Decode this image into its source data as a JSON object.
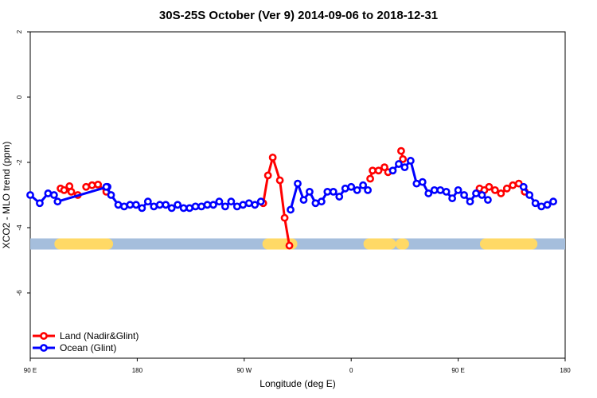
{
  "chart_data": {
    "type": "line",
    "title": "30S-25S October (Ver 9)   2014-09-06 to 2018-12-31",
    "xlabel": "Longitude (deg E)",
    "ylabel": "XCO2 - MLO trend (ppm)",
    "xlim": [
      90,
      540
    ],
    "ylim": [
      -8,
      2
    ],
    "x_ticks": [
      {
        "value": 90,
        "label": "90 E"
      },
      {
        "value": 180,
        "label": "180"
      },
      {
        "value": 270,
        "label": "90 W"
      },
      {
        "value": 360,
        "label": "0"
      },
      {
        "value": 450,
        "label": "90 E"
      },
      {
        "value": 540,
        "label": "180"
      }
    ],
    "y_ticks": [
      {
        "value": 2,
        "label": "2"
      },
      {
        "value": 0,
        "label": "0"
      },
      {
        "value": -2,
        "label": "-2"
      },
      {
        "value": -4,
        "label": "-4"
      },
      {
        "value": -6,
        "label": "-6"
      }
    ],
    "grid": false,
    "legend_position": "bottom-left",
    "series": [
      {
        "name": "Land (Nadir&Glint)",
        "color": "#ff0000",
        "segments": [
          [
            [
              115.5,
              -2.8
            ],
            [
              118.5,
              -2.85
            ],
            [
              124.5,
              -2.9
            ],
            [
              130,
              -3.0
            ]
          ],
          [
            [
              123,
              -2.73
            ]
          ],
          [
            [
              137,
              -2.75
            ],
            [
              142,
              -2.7
            ],
            [
              147,
              -2.68
            ],
            [
              154,
              -2.9
            ]
          ],
          [
            [
              286,
              -3.25
            ],
            [
              290,
              -2.4
            ],
            [
              294,
              -1.85
            ],
            [
              300,
              -2.55
            ],
            [
              304,
              -3.7
            ],
            [
              308,
              -4.55
            ]
          ],
          [
            [
              376,
              -2.5
            ],
            [
              378,
              -2.25
            ],
            [
              383,
              -2.25
            ],
            [
              388,
              -2.15
            ],
            [
              391,
              -2.3
            ]
          ],
          [
            [
              402,
              -1.65
            ],
            [
              403.5,
              -1.9
            ]
          ],
          [
            [
              468,
              -2.8
            ],
            [
              472,
              -2.85
            ],
            [
              476,
              -2.75
            ],
            [
              481,
              -2.85
            ],
            [
              486,
              -2.95
            ],
            [
              491,
              -2.8
            ],
            [
              496,
              -2.7
            ],
            [
              501,
              -2.65
            ],
            [
              506,
              -2.9
            ]
          ]
        ]
      },
      {
        "name": "Ocean (Glint)",
        "color": "#0000ff",
        "segments": [
          [
            [
              90,
              -3.0
            ],
            [
              98,
              -3.25
            ],
            [
              105,
              -2.95
            ],
            [
              110,
              -3.0
            ]
          ],
          [
            [
              113,
              -3.2
            ],
            [
              155,
              -2.75
            ]
          ],
          [
            [
              154,
              -2.75
            ],
            [
              158,
              -3.0
            ],
            [
              164,
              -3.3
            ],
            [
              169,
              -3.35
            ],
            [
              174,
              -3.3
            ],
            [
              179,
              -3.3
            ],
            [
              184,
              -3.4
            ],
            [
              189,
              -3.2
            ],
            [
              194,
              -3.35
            ],
            [
              199,
              -3.3
            ],
            [
              204,
              -3.3
            ],
            [
              209,
              -3.4
            ],
            [
              214,
              -3.3
            ],
            [
              219,
              -3.4
            ],
            [
              224,
              -3.4
            ],
            [
              229,
              -3.35
            ],
            [
              234,
              -3.35
            ],
            [
              239,
              -3.3
            ],
            [
              244,
              -3.3
            ],
            [
              249,
              -3.2
            ],
            [
              254,
              -3.35
            ],
            [
              259,
              -3.2
            ],
            [
              264,
              -3.35
            ],
            [
              269,
              -3.3
            ],
            [
              274,
              -3.25
            ],
            [
              279,
              -3.3
            ],
            [
              284,
              -3.2
            ]
          ],
          [
            [
              309,
              -3.45
            ],
            [
              315,
              -2.65
            ],
            [
              320,
              -3.15
            ],
            [
              325,
              -2.9
            ],
            [
              330,
              -3.25
            ],
            [
              335,
              -3.2
            ],
            [
              340,
              -2.9
            ],
            [
              345,
              -2.9
            ],
            [
              350,
              -3.05
            ],
            [
              355,
              -2.8
            ],
            [
              360,
              -2.75
            ],
            [
              365,
              -2.85
            ],
            [
              370,
              -2.7
            ],
            [
              374,
              -2.85
            ]
          ],
          [
            [
              395,
              -2.25
            ],
            [
              400,
              -2.05
            ],
            [
              405,
              -2.15
            ],
            [
              410,
              -1.95
            ],
            [
              415,
              -2.65
            ],
            [
              420,
              -2.6
            ],
            [
              425,
              -2.95
            ],
            [
              430,
              -2.85
            ],
            [
              435,
              -2.85
            ],
            [
              440,
              -2.9
            ],
            [
              445,
              -3.1
            ],
            [
              450,
              -2.85
            ],
            [
              455,
              -3.0
            ],
            [
              460,
              -3.2
            ],
            [
              465,
              -2.95
            ],
            [
              470,
              -3.0
            ],
            [
              475,
              -3.15
            ]
          ],
          [
            [
              505,
              -2.75
            ],
            [
              510,
              -3.0
            ],
            [
              515,
              -3.25
            ],
            [
              520,
              -3.35
            ],
            [
              525,
              -3.3
            ],
            [
              530,
              -3.2
            ]
          ]
        ]
      }
    ],
    "reference_band": {
      "y": -4.5,
      "ocean_color": "#a5bedc",
      "land_color": "#ffd966",
      "land_ranges": [
        [
          115,
          155
        ],
        [
          290,
          310
        ],
        [
          375,
          393
        ],
        [
          402,
          404
        ],
        [
          473,
          512
        ]
      ]
    }
  }
}
